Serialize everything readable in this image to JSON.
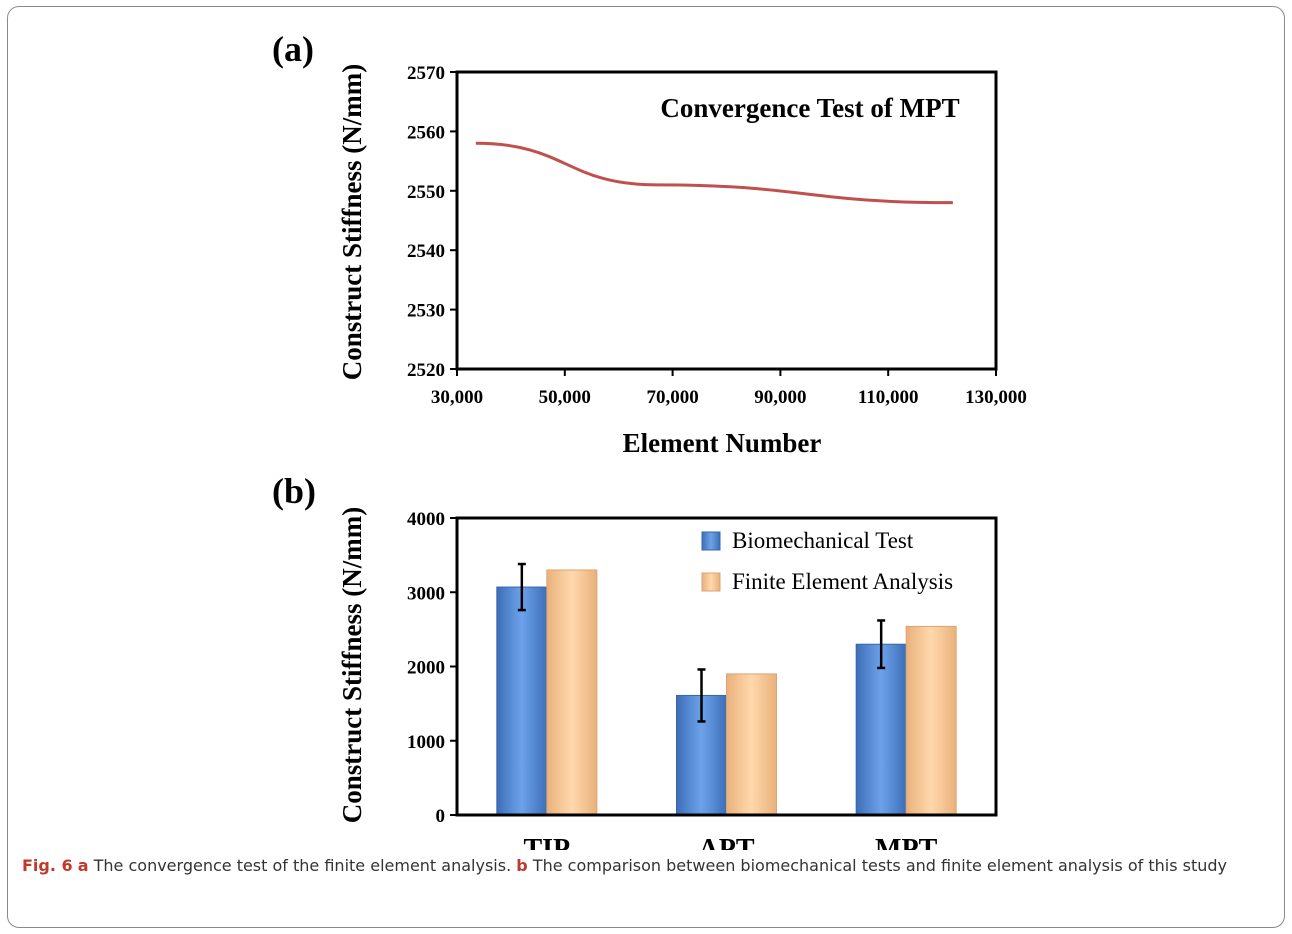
{
  "panels": {
    "a_label": "(a)",
    "b_label": "(b)"
  },
  "caption": {
    "fig_label": "Fig. 6",
    "a_tag": "a",
    "a_text": "The convergence test of the finite element analysis.",
    "b_tag": "b",
    "b_text": "The comparison between biomechanical tests and finite element analysis of this study"
  },
  "chart_data": [
    {
      "type": "line",
      "title": "Convergence Test of MPT",
      "xlabel": "Element Number",
      "ylabel": "Construct Stiffness (N/mm)",
      "xlim": [
        30000,
        130000
      ],
      "ylim": [
        2520,
        2570
      ],
      "x_ticks": [
        "30,000",
        "50,000",
        "70,000",
        "90,000",
        "110,000",
        "130,000"
      ],
      "y_ticks": [
        "2520",
        "2530",
        "2540",
        "2550",
        "2560",
        "2570"
      ],
      "series": [
        {
          "color": "#c0504d",
          "points": [
            {
              "x": 33500,
              "y": 2558
            },
            {
              "x": 67000,
              "y": 2551
            },
            {
              "x": 122000,
              "y": 2548
            }
          ]
        }
      ],
      "grid": false
    },
    {
      "type": "bar",
      "xlabel": "",
      "ylabel": "Construct Stiffness (N/mm)",
      "ylim": [
        0,
        4000
      ],
      "y_ticks": [
        "0",
        "1000",
        "2000",
        "3000",
        "4000"
      ],
      "categories": [
        "TIP",
        "APT",
        "MPT"
      ],
      "legend_position": "top-right",
      "series": [
        {
          "name": "Biomechanical Test",
          "color": "#4f86d6",
          "values": [
            3070,
            1610,
            2300
          ],
          "errors": [
            310,
            350,
            320
          ]
        },
        {
          "name": "Finite Element Analysis",
          "color": "#fbc996",
          "values": [
            3300,
            1900,
            2540
          ]
        }
      ],
      "grid": false
    }
  ]
}
